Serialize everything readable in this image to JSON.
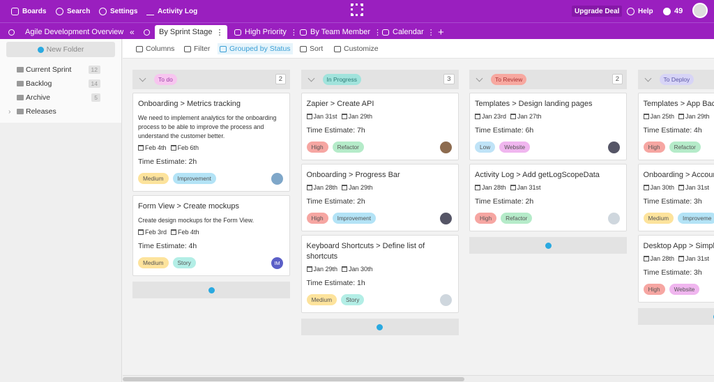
{
  "topbar": {
    "boards": "Boards",
    "search": "Search",
    "settings": "Settings",
    "activity_log": "Activity Log",
    "upgrade": "Upgrade Deal",
    "help": "Help",
    "notifications": 49
  },
  "tabbar": {
    "project": "Agile Development Overview",
    "tabs": [
      "By Sprint Stage",
      "High Priority",
      "By Team Member",
      "Calendar"
    ]
  },
  "sidebar": {
    "new_folder": "New Folder",
    "folders": [
      {
        "name": "Current Sprint",
        "count": 12
      },
      {
        "name": "Backlog",
        "count": 14
      },
      {
        "name": "Archive",
        "count": 5
      },
      {
        "name": "Releases"
      }
    ]
  },
  "toolbar": [
    "Columns",
    "Filter",
    "Grouped by Status",
    "Sort",
    "Customize"
  ],
  "columns": [
    {
      "status": "To do",
      "count": 2,
      "cards": [
        {
          "title": "Onboarding > Metrics tracking",
          "description": "We need to implement analytics for the onboarding process to be able to improve the process and understand the customer better.",
          "start": "Feb 4th",
          "end": "Feb 6th",
          "estimate": "Time Estimate: 2h",
          "tags": [
            "Medium",
            "Improvement"
          ]
        },
        {
          "title": "Form View > Create mockups",
          "description": "Create design mockups for the Form View.",
          "start": "Feb 3rd",
          "end": "Feb 4th",
          "estimate": "Time Estimate: 4h",
          "tags": [
            "Medium",
            "Story"
          ],
          "avatar": "IM"
        }
      ]
    },
    {
      "status": "In Progress",
      "count": 3,
      "cards": [
        {
          "title": "Zapier > Create API",
          "start": "Jan 31st",
          "end": "Jan 29th",
          "estimate": "Time Estimate: 7h",
          "tags": [
            "High",
            "Refactor"
          ]
        },
        {
          "title": "Onboarding > Progress Bar",
          "start": "Jan 28th",
          "end": "Jan 29th",
          "estimate": "Time Estimate: 2h",
          "tags": [
            "High",
            "Improvement"
          ]
        },
        {
          "title": "Keyboard Shortcuts > Define list of shortcuts",
          "start": "Jan 29th",
          "end": "Jan 30th",
          "estimate": "Time Estimate: 1h",
          "tags": [
            "Medium",
            "Story"
          ]
        }
      ]
    },
    {
      "status": "To Review",
      "count": 2,
      "cards": [
        {
          "title": "Templates > Design landing pages",
          "start": "Jan 23rd",
          "end": "Jan 27th",
          "estimate": "Time Estimate: 6h",
          "tags": [
            "Low",
            "Website"
          ]
        },
        {
          "title": "Activity Log > Add getLogScopeData",
          "start": "Jan 28th",
          "end": "Jan 31st",
          "estimate": "Time Estimate: 2h",
          "tags": [
            "High",
            "Refactor"
          ]
        }
      ]
    },
    {
      "status": "To Deploy",
      "cards": [
        {
          "title": "Templates > App Back",
          "start": "Jan 25th",
          "end": "Jan 29th",
          "estimate": "Time Estimate: 4h",
          "tags": [
            "High",
            "Refactor"
          ]
        },
        {
          "title": "Onboarding > Accoun",
          "start": "Jan 30th",
          "end": "Jan 31st",
          "estimate": "Time Estimate: 3h",
          "tags": [
            "Medium",
            "Improveme"
          ]
        },
        {
          "title": "Desktop App > Simple",
          "start": "Jan 28th",
          "end": "Jan 31st",
          "estimate": "Time Estimate: 3h",
          "tags": [
            "High",
            "Website"
          ]
        }
      ]
    }
  ]
}
